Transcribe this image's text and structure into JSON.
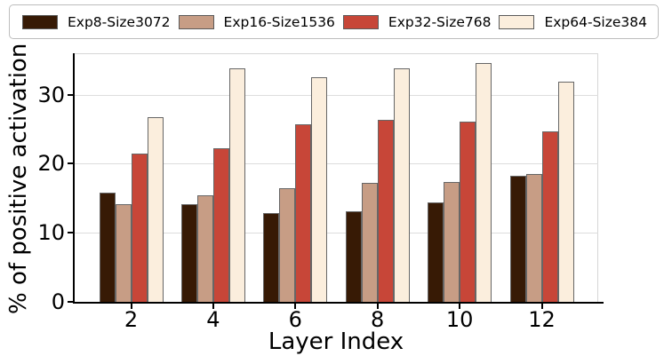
{
  "chart_data": {
    "type": "bar",
    "title": "",
    "xlabel": "Layer Index",
    "ylabel": "% of positive activation",
    "categories": [
      "2",
      "4",
      "6",
      "8",
      "10",
      "12"
    ],
    "series": [
      {
        "name": "Exp8-Size3072",
        "color": "#371a05",
        "values": [
          15.8,
          14.2,
          12.9,
          13.1,
          14.4,
          18.2
        ]
      },
      {
        "name": "Exp16-Size1536",
        "color": "#c79d85",
        "values": [
          14.1,
          15.4,
          16.4,
          17.2,
          17.4,
          18.5
        ]
      },
      {
        "name": "Exp32-Size768",
        "color": "#c74638",
        "values": [
          21.5,
          22.2,
          25.7,
          26.4,
          26.1,
          24.7
        ]
      },
      {
        "name": "Exp64-Size384",
        "color": "#fbeedd",
        "values": [
          26.7,
          33.8,
          32.5,
          33.8,
          34.6,
          31.9
        ]
      }
    ],
    "ytick_labels": [
      "0",
      "10",
      "20",
      "30"
    ],
    "ytick_values": [
      0,
      10,
      20,
      30
    ],
    "ylim": [
      0,
      36
    ],
    "grid": "horizontal-light-gray",
    "legend_position": "top",
    "bar_edge_color": "#666666",
    "gridline_color": "#dddddd"
  }
}
